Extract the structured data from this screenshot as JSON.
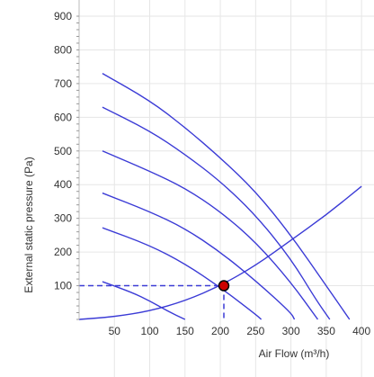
{
  "chart_data": {
    "type": "line",
    "xlabel": "Air Flow (m³/h)",
    "ylabel": "External static pressure (Pa)",
    "xlim": [
      0,
      410
    ],
    "ylim": [
      0,
      900
    ],
    "x_ticks": [
      50,
      100,
      150,
      200,
      250,
      300,
      350,
      400
    ],
    "y_ticks": [
      100,
      200,
      300,
      400,
      500,
      600,
      700,
      800,
      900
    ],
    "grid": true,
    "colors": {
      "fan_curve": "#3b3bd6",
      "system_curve": "#3b3bd6",
      "operating_point": "#cc0000",
      "guide": "#3b3bd6",
      "grid": "#e6e6e6"
    },
    "series": [
      {
        "points": [
          [
            33,
            730
          ],
          [
            100,
            650
          ],
          [
            150,
            570
          ],
          [
            200,
            480
          ],
          [
            250,
            380
          ],
          [
            300,
            250
          ],
          [
            350,
            100
          ],
          [
            383,
            0
          ]
        ]
      },
      {
        "points": [
          [
            33,
            630
          ],
          [
            100,
            560
          ],
          [
            150,
            490
          ],
          [
            200,
            410
          ],
          [
            250,
            310
          ],
          [
            300,
            180
          ],
          [
            335,
            60
          ],
          [
            355,
            0
          ]
        ]
      },
      {
        "points": [
          [
            33,
            500
          ],
          [
            100,
            440
          ],
          [
            150,
            390
          ],
          [
            200,
            320
          ],
          [
            250,
            230
          ],
          [
            300,
            110
          ],
          [
            338,
            0
          ]
        ]
      },
      {
        "points": [
          [
            33,
            375
          ],
          [
            100,
            320
          ],
          [
            150,
            270
          ],
          [
            200,
            200
          ],
          [
            250,
            115
          ],
          [
            300,
            20
          ],
          [
            305,
            0
          ]
        ]
      },
      {
        "points": [
          [
            33,
            272
          ],
          [
            100,
            220
          ],
          [
            150,
            165
          ],
          [
            200,
            95
          ],
          [
            250,
            15
          ],
          [
            258,
            0
          ]
        ]
      },
      {
        "points": [
          [
            33,
            112
          ],
          [
            75,
            80
          ],
          [
            100,
            55
          ],
          [
            125,
            25
          ],
          [
            150,
            0
          ]
        ]
      },
      {
        "points": [
          [
            0,
            0
          ],
          [
            50,
            8
          ],
          [
            100,
            25
          ],
          [
            150,
            55
          ],
          [
            200,
            100
          ],
          [
            250,
            160
          ],
          [
            300,
            235
          ],
          [
            350,
            310
          ],
          [
            400,
            395
          ]
        ]
      }
    ],
    "operating_point": {
      "x": 205,
      "y": 100
    },
    "guide_lines": {
      "x": 205,
      "y": 100
    }
  }
}
